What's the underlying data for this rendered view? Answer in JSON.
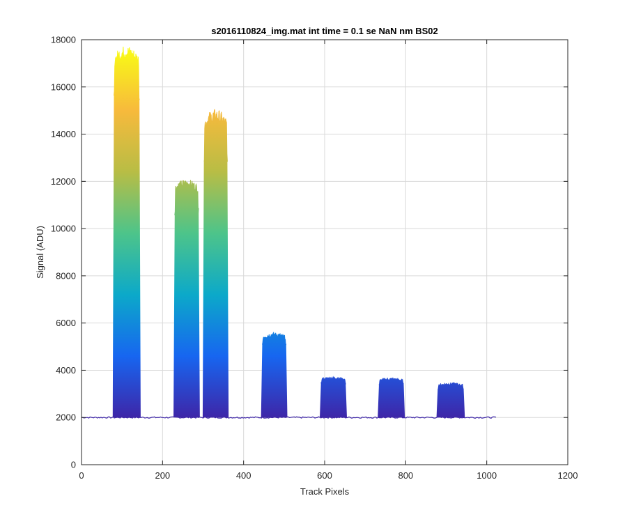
{
  "chart_data": {
    "type": "area",
    "title": "s2016110824_img.mat int time = 0.1 se  NaN nm BS02",
    "xlabel": "Track Pixels",
    "ylabel": "Signal (ADU)",
    "xlim": [
      0,
      1200
    ],
    "ylim": [
      0,
      18000
    ],
    "xticks": [
      0,
      200,
      400,
      600,
      800,
      1000,
      1200
    ],
    "yticks": [
      0,
      2000,
      4000,
      6000,
      8000,
      10000,
      12000,
      14000,
      16000,
      18000
    ],
    "grid": true,
    "legend": "none",
    "colormap": [
      "#3e26a8",
      "#1766f0",
      "#0ca9c9",
      "#4dc48a",
      "#b8bd45",
      "#f7ba3c",
      "#f9fb15"
    ],
    "baseline": 2000,
    "x_range_of_data": [
      0,
      1024
    ],
    "peaks": [
      {
        "x_start": 80,
        "x_end": 143,
        "plateau_low": 16300,
        "plateau_high": 17600
      },
      {
        "x_start": 230,
        "x_end": 289,
        "plateau_low": 11200,
        "plateau_high": 12000
      },
      {
        "x_start": 302,
        "x_end": 360,
        "plateau_low": 13500,
        "plateau_high": 14900
      },
      {
        "x_start": 446,
        "x_end": 505,
        "plateau_low": 5100,
        "plateau_high": 5550
      },
      {
        "x_start": 591,
        "x_end": 652,
        "plateau_low": 3450,
        "plateau_high": 3700
      },
      {
        "x_start": 734,
        "x_end": 795,
        "plateau_low": 3400,
        "plateau_high": 3650
      },
      {
        "x_start": 879,
        "x_end": 943,
        "plateau_low": 3200,
        "plateau_high": 3450
      }
    ]
  }
}
